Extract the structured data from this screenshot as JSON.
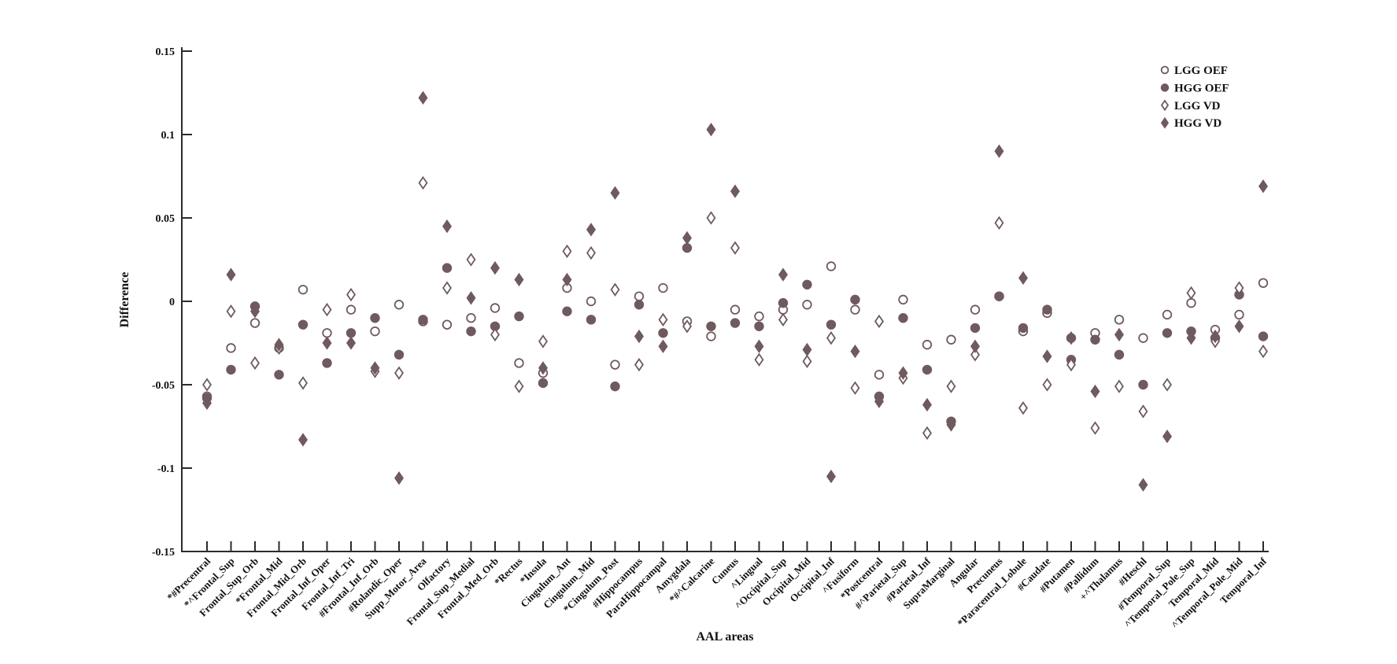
{
  "figure": {
    "background": "#ffffff",
    "accent_color": "#6F5A5E",
    "axis_color": "#2B2B2B",
    "text_color": "#111111"
  },
  "legend": {
    "position": "top-right",
    "entries": [
      {
        "label": "LGG OEF",
        "marker": "open-circle"
      },
      {
        "label": "HGG OEF",
        "marker": "filled-circle"
      },
      {
        "label": "LGG VD",
        "marker": "open-diamond"
      },
      {
        "label": "HGG VD",
        "marker": "filled-diamond"
      }
    ]
  },
  "chart_data": {
    "type": "scatter",
    "title": "",
    "xlabel": "AAL areas",
    "ylabel": "Difference",
    "ylim": [
      -0.15,
      0.15
    ],
    "grid": false,
    "ytick_labels": [
      "0.15",
      "0.1",
      "0.05",
      "0",
      "-0.05",
      "-0.1",
      "-0.15"
    ],
    "ytick_values": [
      0.15,
      0.1,
      0.05,
      0,
      -0.05,
      -0.1,
      -0.15
    ],
    "categories": [
      "*#Precentral",
      "*^Frontal_Sup",
      "Frontal_Sup_Orb",
      "*Frontal_Mid",
      "Frontal_Mid_Orb",
      "Frontal_Inf_Oper",
      "Frontal_Inf_Tri",
      "#Frontal_Inf_Orb",
      "#Rolandic_Oper",
      "Supp_Motor_Area",
      "Olfactory",
      "Frontal_Sup_Medial",
      "Frontal_Med_Orb",
      "*Rectus",
      "*Insula",
      "Cingulum_Ant",
      "Cingulum_Mid",
      "*Cingulum_Post",
      "#Hippocampus",
      "ParaHippocampal",
      "Amygdala",
      "*#^Calcarine",
      "Cuneus",
      "^Lingual",
      "^Occipital_Sup",
      "Occipital_Mid",
      "Occipital_Inf",
      "^Fusiform",
      "*Postcentral",
      "#^Parietal_Sup",
      "#Parietal_Inf",
      "SupraMarginal",
      "Angular",
      "Precuneus",
      "*Paracentral_Lobule",
      "#Caudate",
      "#Putamen",
      "#Pallidum",
      "+^Thalamus",
      "#Heschl",
      "#Temporal_Sup",
      "^Temporal_Pole_Sup",
      "Temporal_Mid",
      "^Temporal_Pole_Mid",
      "Temporal_Inf"
    ],
    "series": [
      {
        "name": "LGG OEF",
        "marker": "open-circle",
        "values": [
          -0.057,
          -0.028,
          -0.013,
          -0.028,
          0.007,
          -0.019,
          -0.005,
          -0.018,
          -0.002,
          -0.012,
          -0.014,
          -0.01,
          -0.004,
          -0.037,
          -0.043,
          0.008,
          0.0,
          -0.038,
          0.003,
          0.008,
          -0.012,
          -0.021,
          -0.005,
          -0.009,
          -0.005,
          -0.002,
          0.021,
          -0.005,
          -0.044,
          0.001,
          -0.026,
          -0.023,
          -0.005,
          0.003,
          -0.018,
          -0.007,
          -0.022,
          -0.019,
          -0.011,
          -0.022,
          -0.008,
          -0.001,
          -0.017,
          -0.008,
          0.011
        ]
      },
      {
        "name": "HGG OEF",
        "marker": "filled-circle",
        "values": [
          -0.058,
          -0.041,
          -0.003,
          -0.044,
          -0.014,
          -0.037,
          -0.019,
          -0.01,
          -0.032,
          -0.011,
          0.02,
          -0.018,
          -0.015,
          -0.009,
          -0.049,
          -0.006,
          -0.011,
          -0.051,
          -0.002,
          -0.019,
          0.032,
          -0.015,
          -0.013,
          -0.015,
          -0.001,
          0.01,
          -0.014,
          0.001,
          -0.057,
          -0.01,
          -0.041,
          -0.072,
          -0.016,
          0.003,
          -0.016,
          -0.005,
          -0.035,
          -0.023,
          -0.032,
          -0.05,
          -0.019,
          -0.018,
          -0.022,
          0.004,
          -0.021
        ]
      },
      {
        "name": "LGG VD",
        "marker": "open-diamond",
        "values": [
          -0.05,
          -0.006,
          -0.037,
          -0.028,
          -0.049,
          -0.005,
          0.004,
          -0.042,
          -0.043,
          0.071,
          0.008,
          0.025,
          -0.02,
          -0.051,
          -0.024,
          0.03,
          0.029,
          0.007,
          -0.038,
          -0.011,
          -0.015,
          0.05,
          0.032,
          -0.035,
          -0.011,
          -0.036,
          -0.022,
          -0.052,
          -0.012,
          -0.046,
          -0.079,
          -0.051,
          -0.032,
          0.047,
          -0.064,
          -0.05,
          -0.038,
          -0.076,
          -0.051,
          -0.066,
          -0.05,
          0.005,
          -0.024,
          0.008,
          -0.03
        ]
      },
      {
        "name": "HGG VD",
        "marker": "filled-diamond",
        "values": [
          -0.061,
          0.016,
          -0.006,
          -0.026,
          -0.083,
          -0.025,
          -0.025,
          -0.04,
          -0.106,
          0.122,
          0.045,
          0.002,
          0.02,
          0.013,
          -0.04,
          0.013,
          0.043,
          0.065,
          -0.021,
          -0.027,
          0.038,
          0.103,
          0.066,
          -0.027,
          0.016,
          -0.029,
          -0.105,
          -0.03,
          -0.06,
          -0.043,
          -0.062,
          -0.074,
          -0.027,
          0.09,
          0.014,
          -0.033,
          -0.022,
          -0.054,
          -0.02,
          -0.11,
          -0.081,
          -0.022,
          -0.021,
          -0.015,
          0.069
        ]
      }
    ]
  }
}
